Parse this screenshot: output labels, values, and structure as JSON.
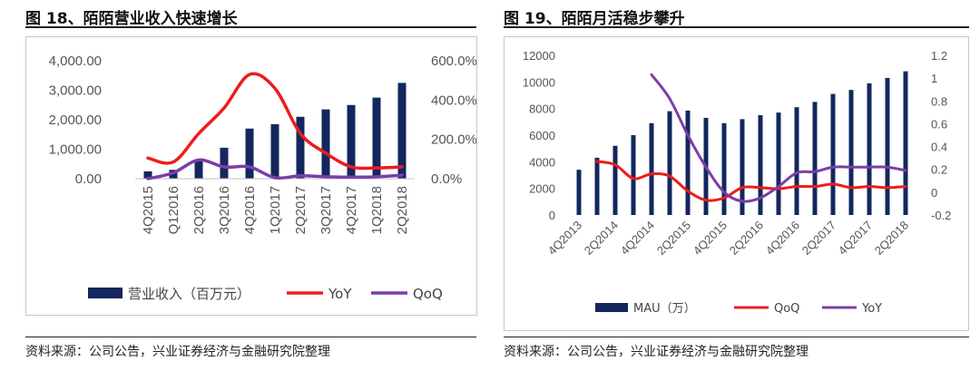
{
  "left": {
    "fig_title": "图 18、陌陌营业收入快速增长",
    "source": "资料来源：公司公告，兴业证券经济与金融研究院整理",
    "legend": [
      "营业收入（百万元）",
      "YoY",
      "QoQ"
    ]
  },
  "right": {
    "fig_title": "图 19、陌陌月活稳步攀升",
    "source": "资料来源：公司公告，兴业证券经济与金融研究院整理",
    "legend": [
      "MAU（万）",
      "QoQ",
      "YoY"
    ]
  },
  "colors": {
    "bar": "#13275e",
    "yoy_left": "#ee1c1c",
    "qoq_left": "#7a3ea8",
    "qoq_right": "#ee1c1c",
    "yoy_right": "#7a3ea8"
  },
  "chart_data": [
    {
      "type": "bar",
      "title": "陌陌营业收入快速增长",
      "categories": [
        "4Q2015",
        "Q12016",
        "2Q2016",
        "3Q2016",
        "4Q2016",
        "1Q2017",
        "2Q2017",
        "3Q2017",
        "4Q2017",
        "1Q2018",
        "2Q2018"
      ],
      "series": [
        {
          "name": "营业收入（百万元）",
          "type": "bar",
          "axis": "left",
          "values": [
            250,
            300,
            600,
            1050,
            1700,
            1850,
            2100,
            2350,
            2500,
            2750,
            3250
          ]
        },
        {
          "name": "YoY",
          "type": "line",
          "axis": "right",
          "values": [
            1.05,
            0.85,
            2.3,
            3.6,
            5.3,
            4.6,
            2.3,
            1.3,
            0.6,
            0.55,
            0.6
          ]
        },
        {
          "name": "QoQ",
          "type": "line",
          "axis": "right",
          "values": [
            0.0,
            0.3,
            0.95,
            0.6,
            0.6,
            0.05,
            0.15,
            0.1,
            0.08,
            0.1,
            0.18
          ]
        }
      ],
      "ylim_left": [
        0,
        4000
      ],
      "yticks_left": [
        "0.00",
        "1,000.00",
        "2,000.00",
        "3,000.00",
        "4,000.00"
      ],
      "ylim_right": [
        0,
        6
      ],
      "yticks_right": [
        "0.0%",
        "200.0%",
        "400.0%",
        "600.0%"
      ],
      "legend_position": "bottom"
    },
    {
      "type": "bar",
      "title": "陌陌月活稳步攀升",
      "categories": [
        "4Q2013",
        "1Q2014",
        "2Q2014",
        "3Q2014",
        "4Q2014",
        "1Q2015",
        "2Q2015",
        "3Q2015",
        "4Q2015",
        "1Q2016",
        "2Q2016",
        "3Q2016",
        "4Q2016",
        "1Q2017",
        "2Q2017",
        "3Q2017",
        "4Q2017",
        "1Q2018",
        "2Q2018"
      ],
      "tick_labels": [
        "4Q2013",
        "2Q2014",
        "4Q2014",
        "2Q2015",
        "4Q2015",
        "2Q2016",
        "4Q2016",
        "2Q2017",
        "4Q2017",
        "2Q2018"
      ],
      "series": [
        {
          "name": "MAU（万）",
          "type": "bar",
          "axis": "left",
          "values": [
            3400,
            4300,
            5200,
            6000,
            6900,
            7800,
            7850,
            7300,
            6900,
            7200,
            7500,
            7700,
            8100,
            8500,
            9100,
            9400,
            9900,
            10300,
            10800
          ]
        },
        {
          "name": "QoQ",
          "type": "line",
          "axis": "right",
          "values": [
            null,
            0.27,
            0.24,
            0.12,
            0.16,
            0.14,
            0.01,
            -0.07,
            -0.05,
            0.04,
            0.04,
            0.03,
            0.05,
            0.05,
            0.07,
            0.04,
            0.05,
            0.04,
            0.05
          ]
        },
        {
          "name": "YoY",
          "type": "line",
          "axis": "right",
          "values": [
            null,
            null,
            null,
            null,
            1.03,
            0.82,
            0.5,
            0.22,
            0.0,
            -0.08,
            -0.05,
            0.05,
            0.17,
            0.18,
            0.22,
            0.22,
            0.22,
            0.22,
            0.19
          ]
        }
      ],
      "ylim_left": [
        0,
        12000
      ],
      "yticks_left": [
        "0",
        "2000",
        "4000",
        "6000",
        "8000",
        "10000",
        "12000"
      ],
      "ylim_right": [
        -0.2,
        1.2
      ],
      "yticks_right": [
        "-0.2",
        "0",
        "0.2",
        "0.4",
        "0.6",
        "0.8",
        "1",
        "1.2"
      ],
      "legend_position": "bottom"
    }
  ]
}
